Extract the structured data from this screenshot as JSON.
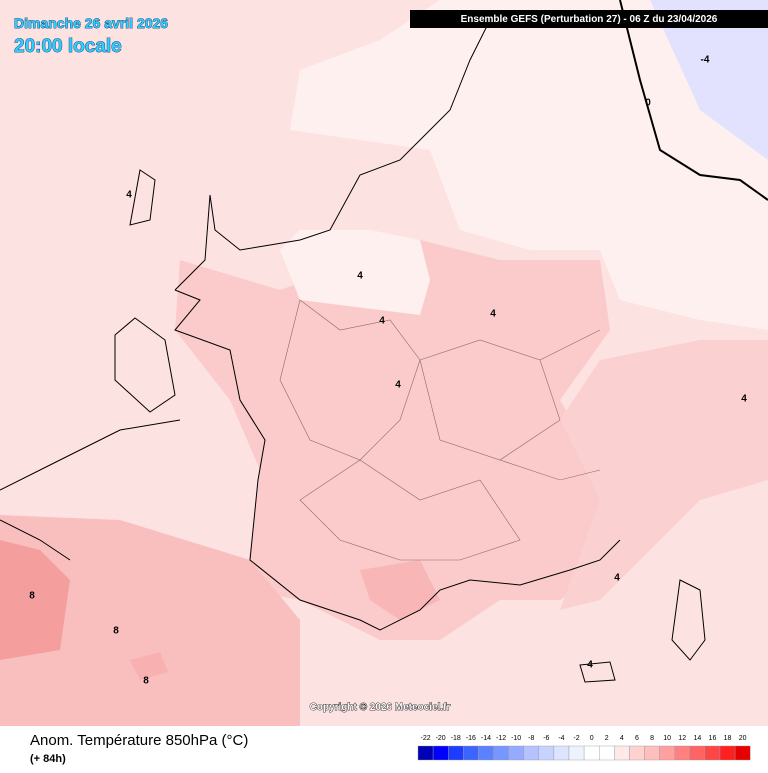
{
  "header": {
    "date": "Dimanche 26 avril 2026",
    "time": "20:00 locale"
  },
  "banner": "Ensemble GEFS  (Perturbation 27)  -  06 Z du 23/04/2026",
  "copyright": "Copyright © 2026 Meteociel.fr",
  "footer": {
    "title": "Anom. Température 850hPa (°C)",
    "lead": "(+ 84h)"
  },
  "contour_labels": [
    4,
    -4,
    0,
    4,
    4,
    4,
    4,
    4,
    4,
    4,
    8,
    8,
    8
  ],
  "legend": {
    "ticks": [
      -22,
      -20,
      -18,
      -16,
      -14,
      -12,
      -10,
      -8,
      -6,
      -4,
      -2,
      0,
      2,
      4,
      6,
      8,
      10,
      12,
      14,
      16,
      18,
      20
    ],
    "colors": [
      "#0000b4",
      "#0000ff",
      "#1e3cff",
      "#3c64ff",
      "#5a82ff",
      "#7896ff",
      "#96aaff",
      "#b4c3ff",
      "#c8d2ff",
      "#dce4ff",
      "#eef2ff",
      "#ffffff",
      "#ffffff",
      "#ffe8e8",
      "#ffd2d2",
      "#ffbebe",
      "#ffa0a0",
      "#ff8080",
      "#ff6464",
      "#ff4646",
      "#ff2020",
      "#e60000"
    ]
  }
}
